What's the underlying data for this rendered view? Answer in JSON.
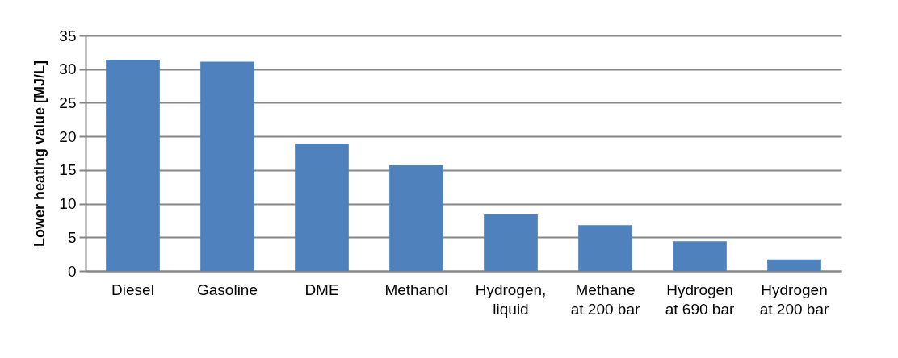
{
  "chart_data": {
    "type": "bar",
    "ylabel": "Lower heating value [MJ/L]",
    "categories": [
      "Diesel",
      "Gasoline",
      "DME",
      "Methanol",
      "Hydrogen, liquid",
      "Methane at 200 bar",
      "Hydrogen at 690 bar",
      "Hydrogen at 200 bar"
    ],
    "values": [
      31.4,
      31.1,
      18.9,
      15.7,
      8.4,
      6.8,
      4.4,
      1.7
    ],
    "color": "#4f81bd",
    "ylim": [
      0,
      35
    ],
    "yticks": [
      0,
      5,
      10,
      15,
      20,
      25,
      30,
      35
    ],
    "grid": "y"
  }
}
